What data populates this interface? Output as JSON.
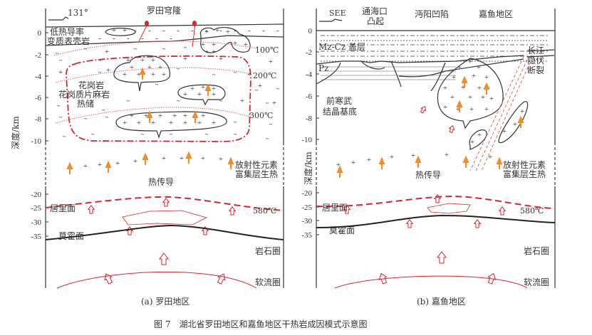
{
  "colors": {
    "isotherm": "#e0606a",
    "curie": "#d9262c",
    "heat_arrow": "#f28c28",
    "line": "#333333"
  },
  "panel_a": {
    "direction_label": "131°",
    "title": "罗田穹隆",
    "y_axis_label": "深度/km",
    "ticks_upper": [
      "0",
      "-2",
      "-4",
      "-6",
      "-8",
      "-10"
    ],
    "ticks_lower": [
      "-20",
      "-25",
      "-30",
      "-35"
    ],
    "low_conductivity_1": "低热导率",
    "low_conductivity_2": "变质表壳岩",
    "isotherms": [
      "100℃",
      "200℃",
      "300℃"
    ],
    "reservoir_1": "花岗岩",
    "reservoir_2": "花岗质片麻岩",
    "reservoir_3": "热储",
    "radio_1": "放射性元素",
    "radio_2": "富集层生热",
    "conduction": "热传导",
    "curie": "居里面",
    "curie_temp": "580℃",
    "moho": "莫霍面",
    "lithosphere": "岩石圈",
    "asthenosphere": "软流圈",
    "caption": "(a) 罗田地区"
  },
  "panel_b": {
    "direction_label": "SEE",
    "uplift_1": "通海口",
    "uplift_2": "凸起",
    "depression": "沔阳凹陷",
    "area": "嘉鱼地区",
    "y_axis_label": "深度/km",
    "ticks_upper": [
      "0",
      "-2",
      "-4",
      "-6",
      "-8",
      "-10"
    ],
    "ticks_lower": [
      "-20",
      "-25",
      "-30",
      "-35"
    ],
    "cover": "Mz-Cz 盖层",
    "pz": "Pz",
    "fault_1": "长江",
    "fault_2": "隐伏",
    "fault_3": "断裂",
    "basement_1": "前寒武",
    "basement_2": "结晶基底",
    "radio_1": "放射性元素",
    "radio_2": "富集层生热",
    "conduction": "热传导",
    "curie": "居里面",
    "curie_temp": "580℃",
    "moho": "莫霍面",
    "lithosphere": "岩石圈",
    "asthenosphere": "软流圈",
    "caption": "(b) 嘉鱼地区"
  },
  "figure_caption": "图 7　湖北省罗田地区和嘉鱼地区干热岩成因模式示意图"
}
